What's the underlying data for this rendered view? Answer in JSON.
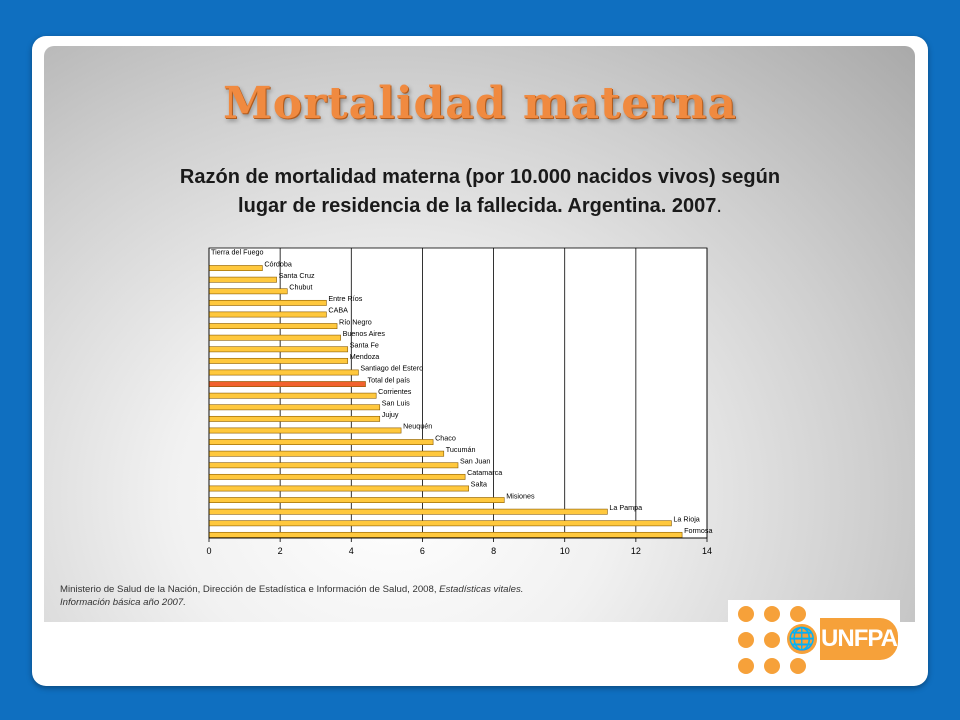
{
  "slide": {
    "title": "Mortalidad materna",
    "subtitle_line1": "Razón de mortalidad materna (por 10.000 nacidos vivos) según",
    "subtitle_line2": "lugar de residencia de la fallecida. Argentina. 2007",
    "subtitle_end": ".",
    "source_text": "Ministerio de Salud de la Nación, Dirección de Estadística e Información de Salud, 2008, ",
    "source_italic": "Estadísticas vitales. Información básica año 2007.",
    "logo_text": "UNFPA"
  },
  "colors": {
    "bar": "#ffc83d",
    "bar_highlight": "#f2622e",
    "bar_stroke": "#8a5c00",
    "title": "#f08a40",
    "background": "#0f6fc0"
  },
  "chart_data": {
    "type": "bar",
    "orientation": "horizontal",
    "categories": [
      "Tierra del Fuego",
      "Córdoba",
      "Santa Cruz",
      "Chubut",
      "Entre Ríos",
      "CABA",
      "Río Negro",
      "Buenos Aires",
      "Santa Fe",
      "Mendoza",
      "Santiago del Estero",
      "Total del país",
      "Corrientes",
      "San Luis",
      "Jujuy",
      "Neuquén",
      "Chaco",
      "Tucumán",
      "San Juan",
      "Catamarca",
      "Salta",
      "Misiones",
      "La Pampa",
      "La Rioja",
      "Formosa"
    ],
    "values": [
      0,
      1.5,
      1.9,
      2.2,
      3.3,
      3.3,
      3.6,
      3.7,
      3.9,
      3.9,
      4.2,
      4.4,
      4.7,
      4.8,
      4.8,
      5.4,
      6.3,
      6.6,
      7.0,
      7.2,
      7.3,
      8.3,
      11.2,
      13.0,
      13.3
    ],
    "highlight_category": "Total del país",
    "xlim": [
      0,
      14
    ],
    "xticks": [
      0,
      2,
      4,
      6,
      8,
      10,
      12,
      14
    ],
    "grid": true
  }
}
